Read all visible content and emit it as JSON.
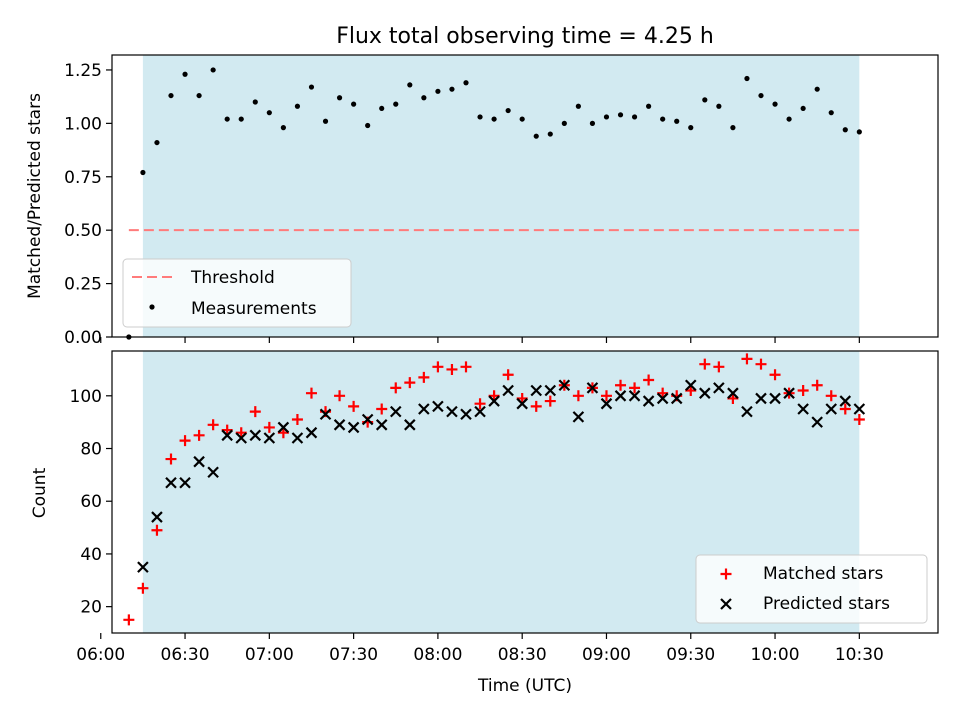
{
  "figure": {
    "title": "Flux total observing time = 4.25 h",
    "xlabel": "Time (UTC)"
  },
  "colors": {
    "shade": "#add8e6",
    "threshold": "#ff7b7b",
    "measurement": "#000000",
    "matched": "#ff0000",
    "predicted": "#000000"
  },
  "chart_data": [
    {
      "type": "scatter",
      "panel": "top",
      "ylabel": "Matched/Predicted stars",
      "xlim": [
        "06:04",
        "10:58"
      ],
      "ylim": [
        0,
        1.32
      ],
      "yticks": [
        0.0,
        0.25,
        0.5,
        0.75,
        1.0,
        1.25
      ],
      "ytick_labels": [
        "0.00",
        "0.25",
        "0.50",
        "0.75",
        "1.00",
        "1.25"
      ],
      "shaded_span": [
        "06:15",
        "10:30"
      ],
      "threshold": {
        "name": "Threshold",
        "y": 0.5,
        "x_range": [
          "06:10",
          "10:30"
        ]
      },
      "legend": {
        "placement": "lower-left",
        "entries": [
          "Threshold",
          "Measurements"
        ]
      },
      "series": [
        {
          "name": "Measurements",
          "x": [
            "06:10",
            "06:15",
            "06:20",
            "06:25",
            "06:30",
            "06:35",
            "06:40",
            "06:45",
            "06:50",
            "06:55",
            "07:00",
            "07:05",
            "07:10",
            "07:15",
            "07:20",
            "07:25",
            "07:30",
            "07:35",
            "07:40",
            "07:45",
            "07:50",
            "07:55",
            "08:00",
            "08:05",
            "08:10",
            "08:15",
            "08:20",
            "08:25",
            "08:30",
            "08:35",
            "08:40",
            "08:45",
            "08:50",
            "08:55",
            "09:00",
            "09:05",
            "09:10",
            "09:15",
            "09:20",
            "09:25",
            "09:30",
            "09:35",
            "09:40",
            "09:45",
            "09:50",
            "09:55",
            "10:00",
            "10:05",
            "10:10",
            "10:15",
            "10:20",
            "10:25",
            "10:30"
          ],
          "y": [
            0.0,
            0.77,
            0.91,
            1.13,
            1.23,
            1.13,
            1.25,
            1.02,
            1.02,
            1.1,
            1.05,
            0.98,
            1.08,
            1.17,
            1.01,
            1.12,
            1.09,
            0.99,
            1.07,
            1.09,
            1.18,
            1.12,
            1.15,
            1.16,
            1.19,
            1.03,
            1.02,
            1.06,
            1.02,
            0.94,
            0.95,
            1.0,
            1.08,
            1.0,
            1.03,
            1.04,
            1.03,
            1.08,
            1.02,
            1.01,
            0.98,
            1.11,
            1.08,
            0.98,
            1.21,
            1.13,
            1.09,
            1.02,
            1.07,
            1.16,
            1.05,
            0.97,
            0.96
          ]
        }
      ]
    },
    {
      "type": "scatter",
      "panel": "bottom",
      "ylabel": "Count",
      "xlim": [
        "06:04",
        "10:58"
      ],
      "ylim": [
        10,
        117
      ],
      "yticks": [
        20,
        40,
        60,
        80,
        100
      ],
      "ytick_labels": [
        "20",
        "40",
        "60",
        "80",
        "100"
      ],
      "xtick_labels": [
        "06:00",
        "06:30",
        "07:00",
        "07:30",
        "08:00",
        "08:30",
        "09:00",
        "09:30",
        "10:00",
        "10:30"
      ],
      "shaded_span": [
        "06:15",
        "10:30"
      ],
      "legend": {
        "placement": "lower-right",
        "entries": [
          "Matched stars",
          "Predicted stars"
        ]
      },
      "series": [
        {
          "name": "Matched stars",
          "marker": "+",
          "x": [
            "06:10",
            "06:15",
            "06:20",
            "06:25",
            "06:30",
            "06:35",
            "06:40",
            "06:45",
            "06:50",
            "06:55",
            "07:00",
            "07:05",
            "07:10",
            "07:15",
            "07:20",
            "07:25",
            "07:30",
            "07:35",
            "07:40",
            "07:45",
            "07:50",
            "07:55",
            "08:00",
            "08:05",
            "08:10",
            "08:15",
            "08:20",
            "08:25",
            "08:30",
            "08:35",
            "08:40",
            "08:45",
            "08:50",
            "08:55",
            "09:00",
            "09:05",
            "09:10",
            "09:15",
            "09:20",
            "09:25",
            "09:30",
            "09:35",
            "09:40",
            "09:45",
            "09:50",
            "09:55",
            "10:00",
            "10:05",
            "10:10",
            "10:15",
            "10:20",
            "10:25",
            "10:30"
          ],
          "y": [
            15,
            27,
            49,
            76,
            83,
            85,
            89,
            87,
            86,
            94,
            88,
            86,
            91,
            101,
            94,
            100,
            96,
            90,
            95,
            103,
            105,
            107,
            111,
            110,
            111,
            97,
            100,
            108,
            99,
            96,
            98,
            104,
            100,
            103,
            100,
            104,
            103,
            106,
            101,
            100,
            102,
            112,
            111,
            99,
            114,
            112,
            108,
            101,
            102,
            104,
            100,
            95,
            91
          ]
        },
        {
          "name": "Predicted stars",
          "marker": "x",
          "x": [
            "06:15",
            "06:20",
            "06:25",
            "06:30",
            "06:35",
            "06:40",
            "06:45",
            "06:50",
            "06:55",
            "07:00",
            "07:05",
            "07:10",
            "07:15",
            "07:20",
            "07:25",
            "07:30",
            "07:35",
            "07:40",
            "07:45",
            "07:50",
            "07:55",
            "08:00",
            "08:05",
            "08:10",
            "08:15",
            "08:20",
            "08:25",
            "08:30",
            "08:35",
            "08:40",
            "08:45",
            "08:50",
            "08:55",
            "09:00",
            "09:05",
            "09:10",
            "09:15",
            "09:20",
            "09:25",
            "09:30",
            "09:35",
            "09:40",
            "09:45",
            "09:50",
            "09:55",
            "10:00",
            "10:05",
            "10:10",
            "10:15",
            "10:20",
            "10:25",
            "10:30"
          ],
          "y": [
            35,
            54,
            67,
            67,
            75,
            71,
            85,
            84,
            85,
            84,
            88,
            84,
            86,
            93,
            89,
            88,
            91,
            89,
            94,
            89,
            95,
            96,
            94,
            93,
            94,
            98,
            102,
            97,
            102,
            102,
            104,
            92,
            103,
            97,
            100,
            100,
            98,
            99,
            99,
            104,
            101,
            103,
            101,
            94,
            99,
            99,
            101,
            95,
            90,
            95,
            98,
            95
          ]
        }
      ]
    }
  ]
}
